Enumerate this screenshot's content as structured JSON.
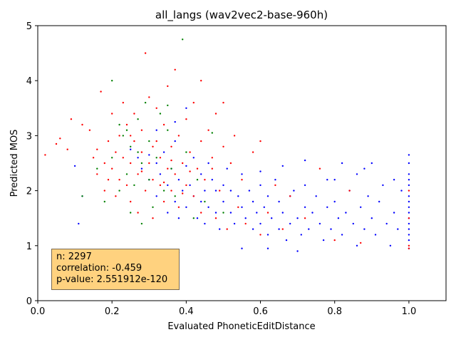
{
  "chart_data": {
    "type": "scatter",
    "title": "all_langs (wav2vec2-base-960h)",
    "xlabel": "Evaluated PhoneticEditDistance",
    "ylabel": "Predicted MOS",
    "xlim": [
      0.0,
      1.1
    ],
    "ylim": [
      0,
      5
    ],
    "xticks": [
      "0.0",
      "0.2",
      "0.4",
      "0.6",
      "0.8",
      "1.0"
    ],
    "xtick_values": [
      0.0,
      0.2,
      0.4,
      0.6,
      0.8,
      1.0
    ],
    "yticks": [
      "0",
      "1",
      "2",
      "3",
      "4",
      "5"
    ],
    "ytick_values": [
      0,
      1,
      2,
      3,
      4,
      5
    ],
    "grid": false,
    "series": [
      {
        "color": "#0000ff",
        "points": [
          [
            0.25,
            2.75
          ],
          [
            0.27,
            2.6
          ],
          [
            0.28,
            2.4
          ],
          [
            0.3,
            2.2
          ],
          [
            0.3,
            2.65
          ],
          [
            0.32,
            2.5
          ],
          [
            0.32,
            1.9
          ],
          [
            0.33,
            2.3
          ],
          [
            0.34,
            2.7
          ],
          [
            0.35,
            2.1
          ],
          [
            0.35,
            1.6
          ],
          [
            0.36,
            2.4
          ],
          [
            0.37,
            1.8
          ],
          [
            0.37,
            2.9
          ],
          [
            0.38,
            2.2
          ],
          [
            0.38,
            1.5
          ],
          [
            0.39,
            2.0
          ],
          [
            0.4,
            2.45
          ],
          [
            0.4,
            1.7
          ],
          [
            0.41,
            2.1
          ],
          [
            0.42,
            1.9
          ],
          [
            0.42,
            2.6
          ],
          [
            0.43,
            1.5
          ],
          [
            0.44,
            2.3
          ],
          [
            0.44,
            1.8
          ],
          [
            0.45,
            2.0
          ],
          [
            0.45,
            1.4
          ],
          [
            0.46,
            2.5
          ],
          [
            0.46,
            1.7
          ],
          [
            0.47,
            2.2
          ],
          [
            0.48,
            1.6
          ],
          [
            0.48,
            2.0
          ],
          [
            0.49,
            1.3
          ],
          [
            0.5,
            2.1
          ],
          [
            0.5,
            1.8
          ],
          [
            0.51,
            2.4
          ],
          [
            0.52,
            1.6
          ],
          [
            0.52,
            2.0
          ],
          [
            0.53,
            1.4
          ],
          [
            0.54,
            1.9
          ],
          [
            0.55,
            1.7
          ],
          [
            0.55,
            2.3
          ],
          [
            0.56,
            1.5
          ],
          [
            0.57,
            2.0
          ],
          [
            0.58,
            1.3
          ],
          [
            0.58,
            1.8
          ],
          [
            0.59,
            1.6
          ],
          [
            0.6,
            2.1
          ],
          [
            0.6,
            1.4
          ],
          [
            0.61,
            1.7
          ],
          [
            0.62,
            1.2
          ],
          [
            0.62,
            1.9
          ],
          [
            0.63,
            1.5
          ],
          [
            0.64,
            2.2
          ],
          [
            0.65,
            1.3
          ],
          [
            0.65,
            1.8
          ],
          [
            0.66,
            1.6
          ],
          [
            0.67,
            1.1
          ],
          [
            0.68,
            1.9
          ],
          [
            0.68,
            1.4
          ],
          [
            0.69,
            2.0
          ],
          [
            0.7,
            1.5
          ],
          [
            0.71,
            1.2
          ],
          [
            0.72,
            1.7
          ],
          [
            0.72,
            2.1
          ],
          [
            0.73,
            1.3
          ],
          [
            0.74,
            1.6
          ],
          [
            0.75,
            1.9
          ],
          [
            0.76,
            1.4
          ],
          [
            0.77,
            1.1
          ],
          [
            0.78,
            1.7
          ],
          [
            0.78,
            2.2
          ],
          [
            0.79,
            1.3
          ],
          [
            0.8,
            1.8
          ],
          [
            0.81,
            1.5
          ],
          [
            0.82,
            2.5
          ],
          [
            0.82,
            1.2
          ],
          [
            0.83,
            1.6
          ],
          [
            0.84,
            2.0
          ],
          [
            0.85,
            1.4
          ],
          [
            0.86,
            2.3
          ],
          [
            0.86,
            1.0
          ],
          [
            0.87,
            1.7
          ],
          [
            0.88,
            1.3
          ],
          [
            0.89,
            1.9
          ],
          [
            0.9,
            2.5
          ],
          [
            0.9,
            1.5
          ],
          [
            0.91,
            1.2
          ],
          [
            0.92,
            1.8
          ],
          [
            0.93,
            2.1
          ],
          [
            0.94,
            1.4
          ],
          [
            0.95,
            1.0
          ],
          [
            0.96,
            1.6
          ],
          [
            0.96,
            2.2
          ],
          [
            0.97,
            1.3
          ],
          [
            0.98,
            2.0
          ],
          [
            1.0,
            2.65
          ],
          [
            1.0,
            2.5
          ],
          [
            1.0,
            2.3
          ],
          [
            1.0,
            2.1
          ],
          [
            1.0,
            1.9
          ],
          [
            1.0,
            1.7
          ],
          [
            1.0,
            1.5
          ],
          [
            1.0,
            1.3
          ],
          [
            1.0,
            1.1
          ],
          [
            1.0,
            0.95
          ],
          [
            1.0,
            2.2
          ],
          [
            1.0,
            1.8
          ],
          [
            1.0,
            1.6
          ],
          [
            1.0,
            1.4
          ],
          [
            1.0,
            1.2
          ],
          [
            0.1,
            2.45
          ],
          [
            0.12,
            1.9
          ],
          [
            0.11,
            1.4
          ],
          [
            0.62,
            0.95
          ],
          [
            0.7,
            0.9
          ],
          [
            0.55,
            0.95
          ],
          [
            0.37,
            3.25
          ],
          [
            0.4,
            3.5
          ],
          [
            0.32,
            3.1
          ],
          [
            0.6,
            2.35
          ],
          [
            0.66,
            2.45
          ],
          [
            0.72,
            2.55
          ],
          [
            0.8,
            2.2
          ],
          [
            0.88,
            2.4
          ]
        ]
      },
      {
        "color": "#ff0000",
        "points": [
          [
            0.02,
            2.65
          ],
          [
            0.05,
            2.85
          ],
          [
            0.06,
            2.95
          ],
          [
            0.08,
            2.75
          ],
          [
            0.09,
            3.3
          ],
          [
            0.12,
            3.2
          ],
          [
            0.14,
            3.1
          ],
          [
            0.15,
            2.6
          ],
          [
            0.16,
            2.3
          ],
          [
            0.17,
            3.8
          ],
          [
            0.18,
            2.5
          ],
          [
            0.18,
            2.0
          ],
          [
            0.19,
            2.9
          ],
          [
            0.2,
            3.4
          ],
          [
            0.2,
            2.4
          ],
          [
            0.21,
            2.7
          ],
          [
            0.21,
            1.9
          ],
          [
            0.22,
            3.0
          ],
          [
            0.22,
            2.2
          ],
          [
            0.23,
            3.6
          ],
          [
            0.23,
            2.6
          ],
          [
            0.24,
            2.1
          ],
          [
            0.24,
            3.2
          ],
          [
            0.25,
            2.5
          ],
          [
            0.25,
            1.8
          ],
          [
            0.26,
            2.9
          ],
          [
            0.26,
            3.4
          ],
          [
            0.27,
            2.3
          ],
          [
            0.27,
            1.6
          ],
          [
            0.28,
            2.7
          ],
          [
            0.28,
            3.1
          ],
          [
            0.29,
            2.0
          ],
          [
            0.29,
            4.5
          ],
          [
            0.3,
            2.5
          ],
          [
            0.3,
            3.7
          ],
          [
            0.31,
            2.2
          ],
          [
            0.31,
            1.5
          ],
          [
            0.32,
            2.9
          ],
          [
            0.32,
            3.5
          ],
          [
            0.33,
            2.1
          ],
          [
            0.33,
            2.6
          ],
          [
            0.34,
            3.2
          ],
          [
            0.34,
            1.8
          ],
          [
            0.35,
            2.4
          ],
          [
            0.35,
            3.9
          ],
          [
            0.36,
            2.0
          ],
          [
            0.36,
            2.8
          ],
          [
            0.37,
            4.2
          ],
          [
            0.37,
            2.3
          ],
          [
            0.38,
            1.7
          ],
          [
            0.38,
            3.0
          ],
          [
            0.39,
            2.5
          ],
          [
            0.4,
            2.1
          ],
          [
            0.4,
            3.3
          ],
          [
            0.41,
            2.7
          ],
          [
            0.42,
            1.9
          ],
          [
            0.42,
            3.6
          ],
          [
            0.43,
            2.4
          ],
          [
            0.44,
            4.0
          ],
          [
            0.44,
            2.9
          ],
          [
            0.45,
            2.2
          ],
          [
            0.46,
            3.1
          ],
          [
            0.47,
            2.6
          ],
          [
            0.48,
            1.5
          ],
          [
            0.48,
            3.4
          ],
          [
            0.49,
            2.0
          ],
          [
            0.5,
            2.8
          ],
          [
            0.5,
            3.6
          ],
          [
            0.51,
            1.3
          ],
          [
            0.52,
            2.5
          ],
          [
            0.53,
            3.0
          ],
          [
            0.54,
            1.7
          ],
          [
            0.55,
            2.2
          ],
          [
            0.56,
            1.4
          ],
          [
            0.58,
            2.7
          ],
          [
            0.6,
            1.2
          ],
          [
            0.6,
            2.9
          ],
          [
            0.62,
            1.6
          ],
          [
            0.64,
            2.1
          ],
          [
            0.66,
            1.3
          ],
          [
            0.68,
            1.9
          ],
          [
            0.72,
            1.5
          ],
          [
            0.76,
            2.4
          ],
          [
            0.8,
            1.1
          ],
          [
            0.84,
            2.0
          ],
          [
            0.87,
            1.05
          ],
          [
            1.0,
            0.95
          ],
          [
            1.0,
            1.0
          ],
          [
            1.0,
            1.5
          ],
          [
            1.0,
            2.0
          ],
          [
            0.16,
            2.75
          ],
          [
            0.19,
            2.2
          ],
          [
            0.25,
            3.0
          ],
          [
            0.28,
            2.35
          ],
          [
            0.31,
            2.8
          ],
          [
            0.34,
            2.15
          ],
          [
            0.36,
            2.55
          ],
          [
            0.39,
            1.95
          ],
          [
            0.41,
            2.35
          ],
          [
            0.44,
            1.6
          ],
          [
            0.47,
            2.4
          ]
        ]
      },
      {
        "color": "#008000",
        "points": [
          [
            0.12,
            1.9
          ],
          [
            0.16,
            2.4
          ],
          [
            0.18,
            1.8
          ],
          [
            0.2,
            4.0
          ],
          [
            0.2,
            2.6
          ],
          [
            0.22,
            3.2
          ],
          [
            0.22,
            2.0
          ],
          [
            0.23,
            3.0
          ],
          [
            0.24,
            2.3
          ],
          [
            0.25,
            1.6
          ],
          [
            0.25,
            2.8
          ],
          [
            0.26,
            2.1
          ],
          [
            0.27,
            3.3
          ],
          [
            0.28,
            2.5
          ],
          [
            0.28,
            1.4
          ],
          [
            0.29,
            3.6
          ],
          [
            0.3,
            2.2
          ],
          [
            0.3,
            2.9
          ],
          [
            0.31,
            1.7
          ],
          [
            0.32,
            2.6
          ],
          [
            0.33,
            3.4
          ],
          [
            0.34,
            2.0
          ],
          [
            0.35,
            3.55
          ],
          [
            0.36,
            2.4
          ],
          [
            0.37,
            1.9
          ],
          [
            0.38,
            0.88
          ],
          [
            0.39,
            4.75
          ],
          [
            0.4,
            2.7
          ],
          [
            0.42,
            1.5
          ],
          [
            0.43,
            2.2
          ],
          [
            0.45,
            1.8
          ],
          [
            0.47,
            3.05
          ],
          [
            0.5,
            1.6
          ],
          [
            0.35,
            3.1
          ],
          [
            0.27,
            2.7
          ],
          [
            0.24,
            3.1
          ]
        ]
      }
    ],
    "annotation": {
      "n": "n: 2297",
      "correlation": "correlation: -0.459",
      "pvalue": "p-value: 2.551912e-120"
    }
  }
}
